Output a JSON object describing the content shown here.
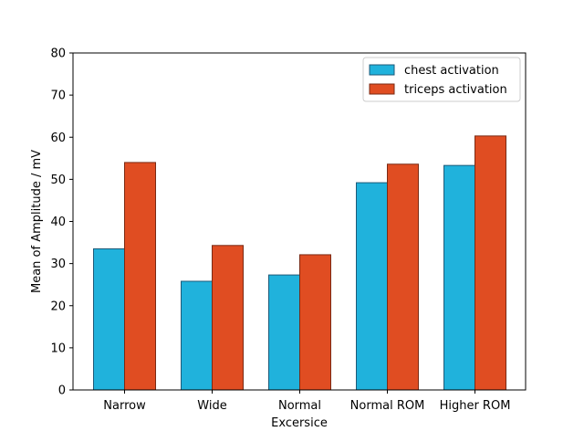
{
  "chart_data": {
    "type": "bar",
    "title": "",
    "xlabel": "Excersice",
    "ylabel": "Mean of Amplitude / mV",
    "ylim": [
      0,
      80
    ],
    "yticks": [
      0,
      10,
      20,
      30,
      40,
      50,
      60,
      70,
      80
    ],
    "categories": [
      "Narrow",
      "Wide",
      "Normal",
      "Normal ROM",
      "Higher ROM"
    ],
    "series": [
      {
        "name": "chest activation",
        "values": [
          33.5,
          25.8,
          27.3,
          49.2,
          53.3
        ],
        "color": "#20b2dc",
        "edge": "#1e5a78"
      },
      {
        "name": "triceps activation",
        "values": [
          54.0,
          34.3,
          32.1,
          53.6,
          60.3
        ],
        "color": "#e04d22",
        "edge": "#7a2a14"
      }
    ],
    "legend": "top-right",
    "grid": false
  }
}
